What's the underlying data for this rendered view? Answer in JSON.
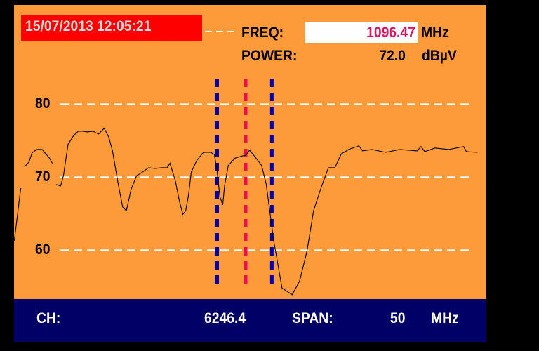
{
  "header": {
    "timestamp": "15/07/2013 12:05:21",
    "freq_label": "FREQ:",
    "freq_value": "1096.47",
    "freq_unit": "MHz",
    "power_label": "POWER:",
    "power_value": "72.0",
    "power_unit": "dBµV"
  },
  "footer": {
    "ch_label": "CH:",
    "ch_value": "6246.4",
    "span_label": "SPAN:",
    "span_value": "50",
    "span_unit": "MHz"
  },
  "colors": {
    "background": "#fd9a3a",
    "timestamp_box": "#ff0000",
    "freq_value": "#e0105a",
    "footer": "#000066",
    "marker_center": "#e8104f",
    "marker_edges": "#0000b0",
    "trace": "#000000",
    "grid": "#ffffff"
  },
  "chart_data": {
    "type": "line",
    "xlabel": "",
    "ylabel": "",
    "x_unit": "MHz",
    "y_unit": "dBµV",
    "xlim": [
      1071.47,
      1121.47
    ],
    "ylim": [
      53.3,
      93.6
    ],
    "y_ticks": [
      "80",
      "70",
      "60"
    ],
    "y_tick_values": [
      80,
      70,
      60
    ],
    "grid": "horizontal dashed",
    "markers": {
      "center": 1096.47,
      "lower": 1093.4,
      "upper": 1099.3
    },
    "trace_segments": [
      [
        [
          1071.5,
          61.3
        ],
        [
          1072.2,
          68.5
        ]
      ],
      [
        [
          1072.6,
          71.4
        ],
        [
          1073.1,
          72.1
        ],
        [
          1073.4,
          73.3
        ],
        [
          1073.9,
          73.8
        ],
        [
          1074.5,
          73.8
        ],
        [
          1075.3,
          72.6
        ],
        [
          1075.6,
          71.9
        ]
      ],
      [
        [
          1076.0,
          69.0
        ],
        [
          1076.5,
          68.8
        ],
        [
          1076.8,
          70.2
        ],
        [
          1077.3,
          74.5
        ],
        [
          1077.9,
          75.7
        ],
        [
          1078.4,
          76.3
        ],
        [
          1078.9,
          76.3
        ],
        [
          1079.4,
          76.2
        ],
        [
          1080.0,
          76.3
        ],
        [
          1080.6,
          75.9
        ],
        [
          1081.2,
          76.7
        ],
        [
          1081.7,
          75.5
        ],
        [
          1082.1,
          73.6
        ],
        [
          1082.7,
          69.2
        ],
        [
          1083.2,
          65.9
        ],
        [
          1083.6,
          65.4
        ],
        [
          1084.1,
          68.3
        ],
        [
          1084.7,
          70.2
        ],
        [
          1085.1,
          70.5
        ],
        [
          1086.0,
          71.3
        ],
        [
          1086.7,
          71.2
        ],
        [
          1087.4,
          71.3
        ],
        [
          1088.0,
          71.3
        ],
        [
          1088.3,
          71.9
        ],
        [
          1088.6,
          70.7
        ],
        [
          1088.9,
          69.4
        ],
        [
          1089.3,
          66.8
        ],
        [
          1089.7,
          64.9
        ],
        [
          1090.0,
          65.4
        ],
        [
          1090.3,
          67.5
        ],
        [
          1090.6,
          70.7
        ],
        [
          1091.2,
          72.3
        ],
        [
          1091.9,
          73.4
        ],
        [
          1092.7,
          73.4
        ],
        [
          1093.1,
          73.1
        ],
        [
          1093.4,
          70.7
        ],
        [
          1093.7,
          67.3
        ],
        [
          1094.0,
          66.2
        ],
        [
          1094.2,
          68.8
        ],
        [
          1094.6,
          71.6
        ],
        [
          1095.3,
          72.6
        ],
        [
          1096.1,
          72.9
        ],
        [
          1096.5,
          73.0
        ],
        [
          1096.9,
          73.7
        ],
        [
          1097.6,
          72.6
        ],
        [
          1098.2,
          71.6
        ],
        [
          1098.7,
          69.0
        ],
        [
          1099.5,
          61.3
        ],
        [
          1100.4,
          54.8
        ],
        [
          1101.5,
          53.9
        ],
        [
          1102.3,
          55.8
        ],
        [
          1103.1,
          59.9
        ],
        [
          1103.8,
          65.4
        ],
        [
          1104.6,
          68.5
        ],
        [
          1105.4,
          71.3
        ],
        [
          1106.1,
          71.3
        ],
        [
          1106.8,
          73.2
        ],
        [
          1107.6,
          73.8
        ],
        [
          1108.7,
          74.3
        ],
        [
          1109.1,
          73.6
        ],
        [
          1110.1,
          73.8
        ],
        [
          1111.6,
          73.4
        ],
        [
          1113.1,
          73.8
        ],
        [
          1115.0,
          73.6
        ],
        [
          1115.4,
          74.2
        ],
        [
          1115.8,
          73.5
        ],
        [
          1116.9,
          74.0
        ],
        [
          1118.4,
          73.8
        ],
        [
          1120.0,
          74.2
        ],
        [
          1120.3,
          73.5
        ],
        [
          1121.5,
          73.4
        ]
      ]
    ]
  }
}
